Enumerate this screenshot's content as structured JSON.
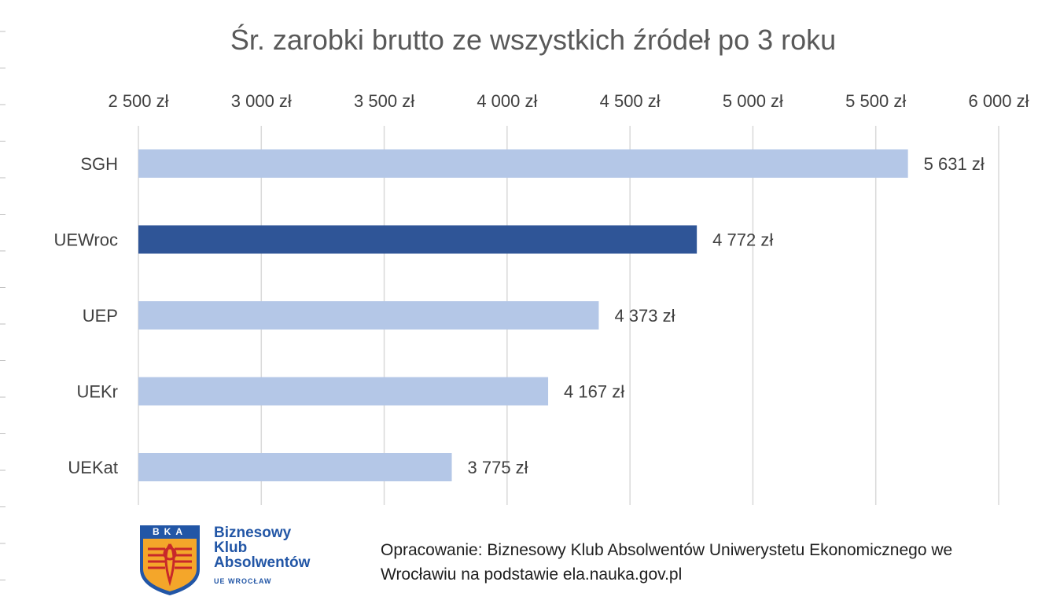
{
  "chart_data": {
    "type": "bar",
    "orientation": "horizontal",
    "title": "Śr. zarobki brutto ze wszystkich źródeł po 3 roku",
    "xlabel": "",
    "ylabel": "",
    "xlim": [
      2500,
      6000
    ],
    "x_ticks": [
      2500,
      3000,
      3500,
      4000,
      4500,
      5000,
      5500,
      6000
    ],
    "x_tick_labels": [
      "2 500 zł",
      "3 000 zł",
      "3 500 zł",
      "4 000 zł",
      "4 500 zł",
      "5 000 zł",
      "5 500 zł",
      "6 000 zł"
    ],
    "x_axis_position": "top",
    "grid": "vertical",
    "categories": [
      "SGH",
      "UEWroc",
      "UEP",
      "UEKr",
      "UEKat"
    ],
    "values": [
      5631,
      4772,
      4373,
      4167,
      3775
    ],
    "data_labels": [
      "5 631 zł",
      "4 772 zł",
      "4 373 zł",
      "4 167 zł",
      "3 775 zł"
    ],
    "highlight_category": "UEWroc",
    "colors": {
      "default": "#b4c7e7",
      "highlight": "#2f5597",
      "grid": "#d9d9d9"
    }
  },
  "logo": {
    "badge_text": "BKA",
    "name_lines": [
      "Biznesowy",
      "Klub",
      "Absolwentów"
    ],
    "subtitle": "UE WROCŁAW"
  },
  "source_note": {
    "line1": "Opracowanie: Biznesowy Klub Absolwentów Uniwerystetu Ekonomicznego we",
    "line2": "Wrocławiu na podstawie ela.nauka.gov.pl"
  }
}
